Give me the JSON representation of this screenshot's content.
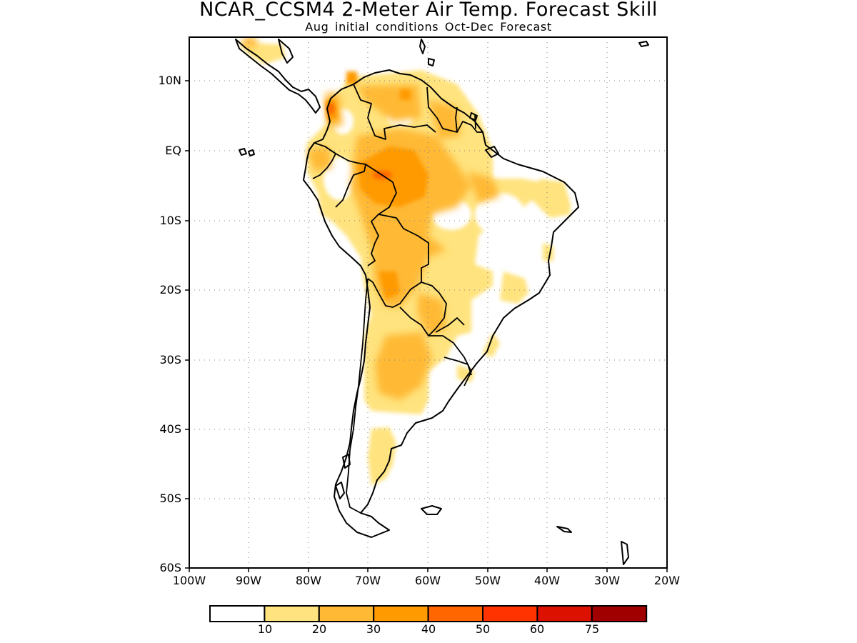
{
  "header": {
    "title": "NCAR_CCSM4 2-Meter Air Temp. Forecast Skill",
    "subtitle": "Aug initial conditions  Oct-Dec Forecast"
  },
  "axes": {
    "lat_labels": [
      "10N",
      "EQ",
      "10S",
      "20S",
      "30S",
      "40S",
      "50S",
      "60S"
    ],
    "lon_labels": [
      "100W",
      "90W",
      "80W",
      "70W",
      "60W",
      "50W",
      "40W",
      "30W",
      "20W"
    ]
  },
  "colorbar": {
    "labels": [
      "10",
      "20",
      "30",
      "40",
      "50",
      "60",
      "75"
    ],
    "colors": [
      "#ffffff",
      "#ffe37e",
      "#ffb934",
      "#ff9a00",
      "#ff6600",
      "#ff3300",
      "#dd1100",
      "#a00000"
    ]
  }
}
